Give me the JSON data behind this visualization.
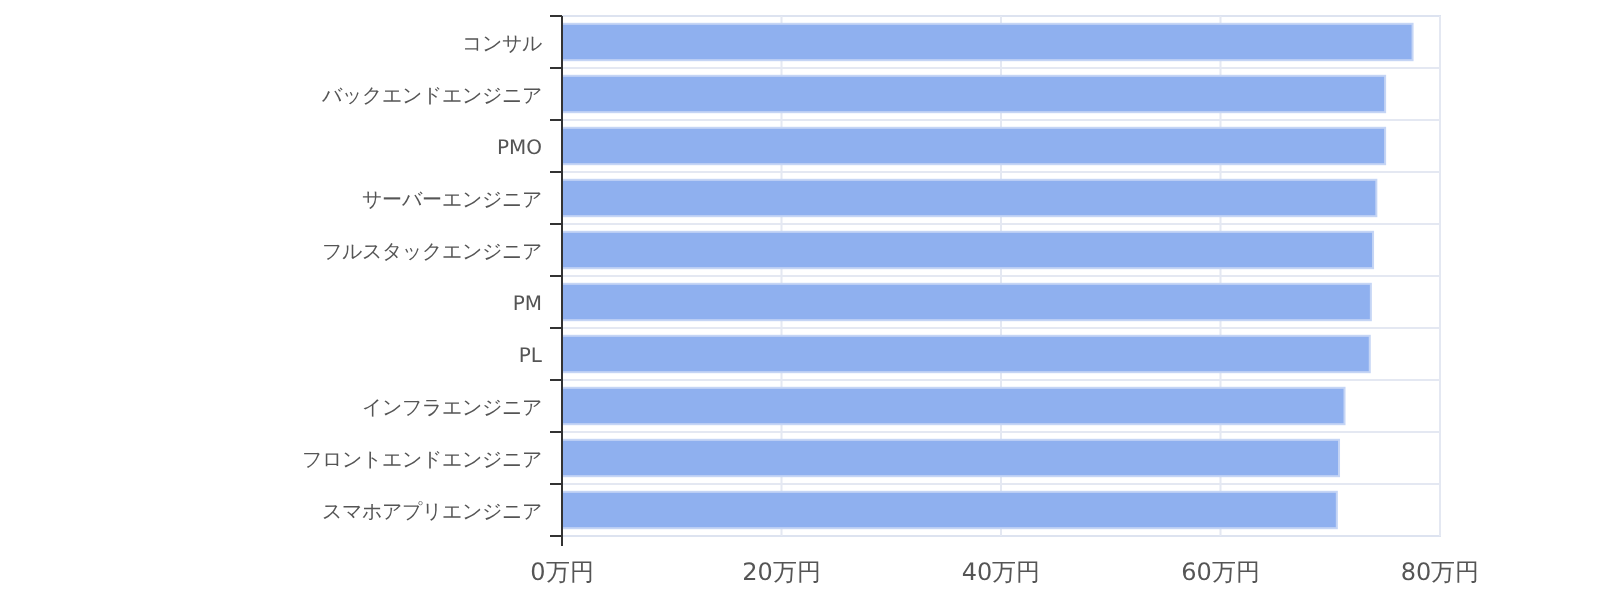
{
  "chart_data": {
    "type": "bar",
    "orientation": "horizontal",
    "categories": [
      "コンサル",
      "バックエンドエンジニア",
      "PMO",
      "サーバーエンジニア",
      "フルスタックエンジニア",
      "PM",
      "PL",
      "インフラエンジニア",
      "フロントエンドエンジニア",
      "スマホアプリエンジニア"
    ],
    "values": [
      77.5,
      75.0,
      75.0,
      74.2,
      73.9,
      73.7,
      73.6,
      71.3,
      70.8,
      70.6
    ],
    "color": "#8fb0ef",
    "xlim": [
      0,
      80
    ],
    "xticks": [
      {
        "value": 0,
        "label": "0万円"
      },
      {
        "value": 20,
        "label": "20万円"
      },
      {
        "value": 40,
        "label": "40万円"
      },
      {
        "value": 60,
        "label": "60万円"
      },
      {
        "value": 80,
        "label": "80万円"
      }
    ],
    "grid": true
  }
}
